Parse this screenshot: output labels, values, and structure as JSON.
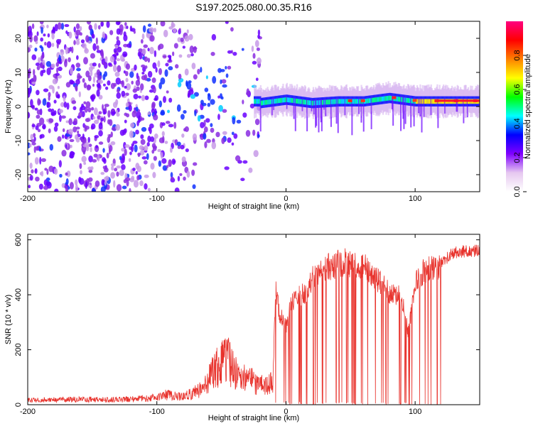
{
  "chart_data": [
    {
      "type": "heatmap",
      "title": "S197.2025.080.00.35.R16",
      "xlabel": "Height of straight line (km)",
      "ylabel": "Frequency (Hz)",
      "xlim": [
        -200,
        150
      ],
      "ylim": [
        -25,
        25
      ],
      "x_ticks": [
        "-200",
        "-100",
        "0",
        "100"
      ],
      "y_ticks": [
        "-20",
        "-10",
        "0",
        "10",
        "20"
      ],
      "colorbar": {
        "label": "Normalized spectral amplitude",
        "range": [
          0,
          1
        ],
        "ticks": [
          "0.0",
          "0.2",
          "0.4",
          "0.6",
          "0.8"
        ],
        "colormap": [
          "#ffffff",
          "#e6c8f0",
          "#8000ff",
          "#0000ff",
          "#00ffff",
          "#00ff00",
          "#ffff00",
          "#ff8000",
          "#ff0000",
          "#ff0080"
        ]
      },
      "ridge": {
        "x": [
          -20,
          0,
          20,
          40,
          60,
          80,
          100,
          120,
          150
        ],
        "y": [
          1,
          2,
          1,
          1.5,
          1.5,
          2.5,
          1.5,
          1.5,
          1.5
        ]
      }
    },
    {
      "type": "line",
      "title": "",
      "xlabel": "Height of straight line (km)",
      "ylabel": "SNR (10 * v/v)",
      "xlim": [
        -200,
        150
      ],
      "ylim": [
        0,
        620
      ],
      "x_ticks": [
        "-200",
        "-100",
        "0",
        "100"
      ],
      "y_ticks": [
        "0",
        "200",
        "400",
        "600"
      ],
      "series": [
        {
          "color": "#e8322c",
          "x": [
            -200,
            -180,
            -160,
            -140,
            -120,
            -105,
            -95,
            -85,
            -75,
            -65,
            -58,
            -52,
            -45,
            -40,
            -35,
            -30,
            -25,
            -20,
            -15,
            -10,
            -8,
            -5,
            0,
            5,
            10,
            15,
            20,
            30,
            40,
            50,
            55,
            60,
            65,
            70,
            80,
            90,
            92,
            95,
            100,
            110,
            120,
            130,
            140,
            150
          ],
          "y": [
            20,
            22,
            24,
            22,
            25,
            28,
            45,
            40,
            45,
            70,
            130,
            180,
            200,
            150,
            110,
            130,
            100,
            90,
            80,
            120,
            450,
            350,
            300,
            400,
            420,
            430,
            480,
            520,
            540,
            545,
            520,
            540,
            500,
            480,
            430,
            410,
            330,
            280,
            480,
            520,
            520,
            560,
            565,
            565
          ]
        }
      ]
    }
  ]
}
